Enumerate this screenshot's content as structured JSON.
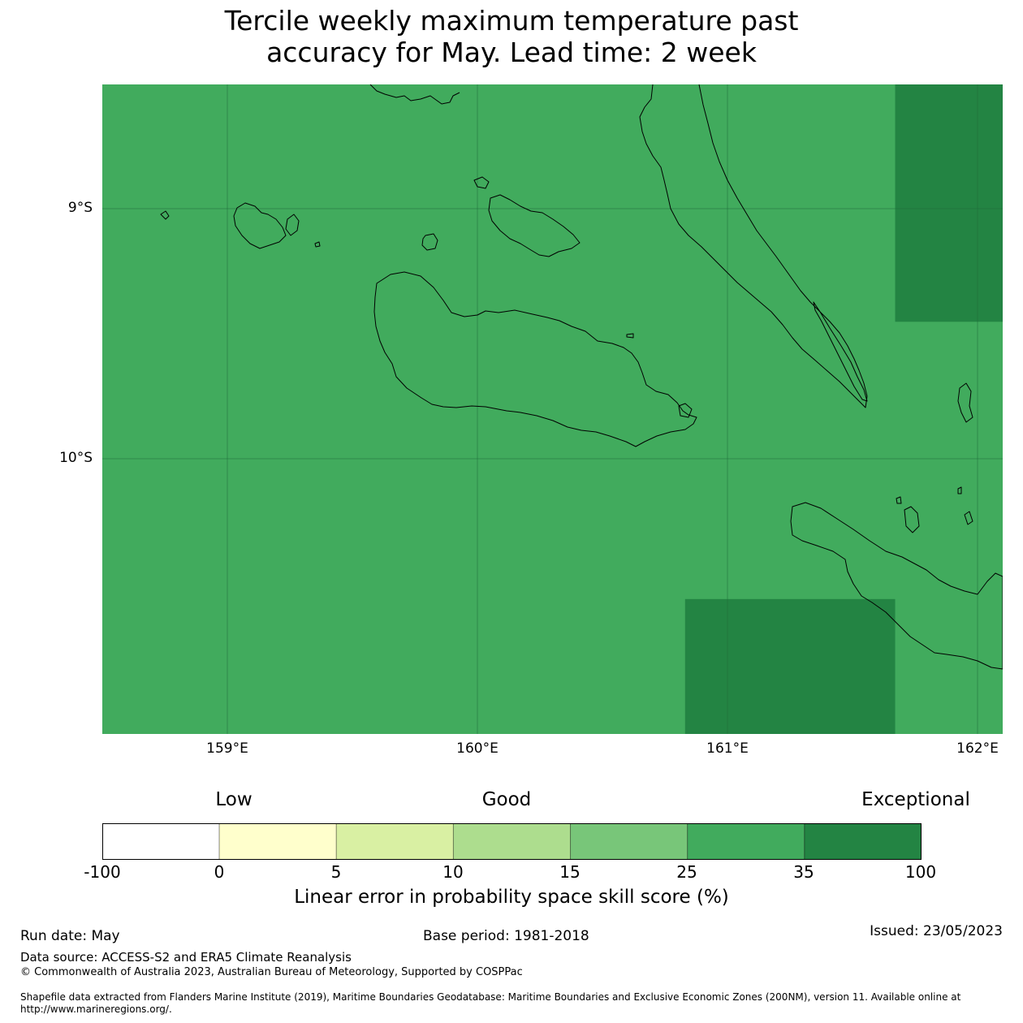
{
  "title": {
    "line1": "Tercile weekly maximum temperature past",
    "line2": "accuracy for May. Lead time: 2 week"
  },
  "map": {
    "latitude_labels": [
      "9°S",
      "10°S"
    ],
    "longitude_labels": [
      "159°E",
      "160°E",
      "161°E",
      "162°E"
    ],
    "extent": {
      "lon_min": 158.5,
      "lon_max": 162.1,
      "lat_min": -11.1,
      "lat_max": -8.5
    },
    "background_category": "25 to 35",
    "cells": [
      {
        "lon": [
          161.67,
          162.1
        ],
        "lat": [
          -9.45,
          -8.5
        ],
        "category": "35 to 100"
      },
      {
        "lon": [
          160.83,
          161.67
        ],
        "lat": [
          -11.1,
          -10.56
        ],
        "category": "35 to 100"
      }
    ]
  },
  "colorbar": {
    "category_labels": [
      "Low",
      "Good",
      "Exceptional"
    ],
    "ticks": [
      "-100",
      "0",
      "5",
      "10",
      "15",
      "25",
      "35",
      "100"
    ],
    "colors": [
      "#ffffff",
      "#ffffcc",
      "#d9f0a3",
      "#addd8e",
      "#78c679",
      "#41ab5d",
      "#238443"
    ],
    "axis_label": "Linear error in probability space skill score (%)"
  },
  "footer": {
    "run_date": "Run date: May",
    "base_period": "Base period: 1981-2018",
    "issued": "Issued: 23/05/2023",
    "data_source": "Data source: ACCESS-S2 and ERA5 Climate Reanalysis",
    "copyright": "© Commonwealth of Australia 2023, Australian Bureau of Meteorology, Supported by COSPPac",
    "shapefile_line1": "Shapefile data extracted from Flanders Marine Institute (2019), Maritime Boundaries Geodatabase: Maritime Boundaries and Exclusive Economic Zones (200NM), version 11. Available online at",
    "shapefile_line2": "http://www.marineregions.org/."
  }
}
